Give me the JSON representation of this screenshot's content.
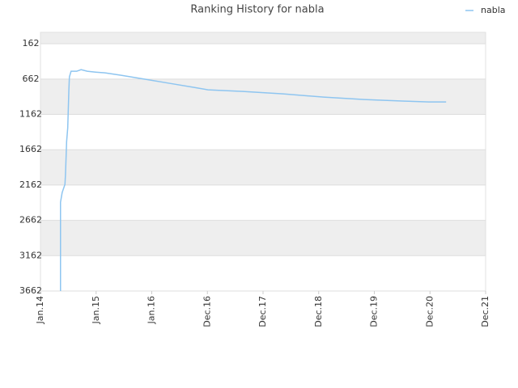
{
  "chart_data": {
    "type": "line",
    "title": "Ranking History for nabla",
    "series": [
      {
        "name": "nabla",
        "color": "#8ec5f0",
        "x": [
          0.36,
          0.36,
          0.39,
          0.44,
          0.45,
          0.47,
          0.49,
          0.51,
          0.52,
          0.55,
          0.65,
          0.73,
          0.84,
          0.99,
          1.16,
          1.45,
          1.89,
          2.33,
          2.76,
          3.01,
          3.64,
          4.36,
          5.09,
          5.82,
          6.55,
          6.98,
          7.29
        ],
        "values": [
          3662,
          2405,
          2268,
          2153,
          2004,
          1547,
          1352,
          826,
          631,
          551,
          551,
          528,
          551,
          563,
          574,
          608,
          665,
          723,
          780,
          814,
          837,
          871,
          917,
          951,
          974,
          986,
          986
        ]
      }
    ],
    "xlim": [
      0,
      8
    ],
    "xticks": [
      {
        "value": 0,
        "label": "Jan.14"
      },
      {
        "value": 1,
        "label": "Jan.15"
      },
      {
        "value": 2,
        "label": "Jan.16"
      },
      {
        "value": 3,
        "label": "Dec.16"
      },
      {
        "value": 4,
        "label": "Dec.17"
      },
      {
        "value": 5,
        "label": "Dec.18"
      },
      {
        "value": 6,
        "label": "Dec.19"
      },
      {
        "value": 7,
        "label": "Dec.20"
      },
      {
        "value": 8,
        "label": "Dec.21"
      }
    ],
    "ylim": [
      0,
      3662
    ],
    "inverted": true,
    "yticks": [
      162,
      662,
      1162,
      1662,
      2162,
      2662,
      3162,
      3662
    ],
    "grid": true,
    "legend": "top-right"
  }
}
